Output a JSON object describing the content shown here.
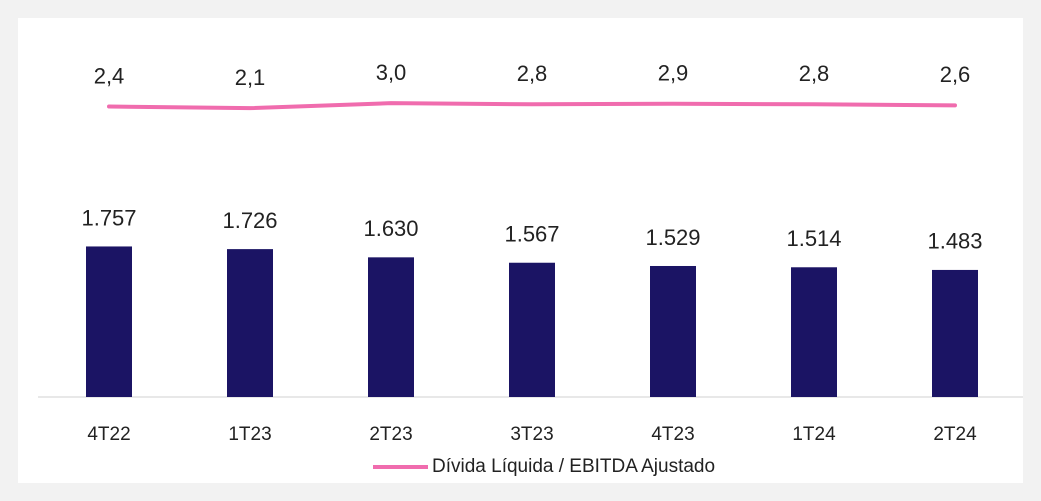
{
  "chart_data": {
    "type": "bar",
    "categories": [
      "4T22",
      "1T23",
      "2T23",
      "3T23",
      "4T23",
      "1T24",
      "2T24"
    ],
    "series": [
      {
        "type": "bar",
        "color": "#1b1464",
        "values": [
          1757,
          1726,
          1630,
          1567,
          1529,
          1514,
          1483
        ],
        "value_labels": [
          "1.757",
          "1.726",
          "1.630",
          "1.567",
          "1.529",
          "1.514",
          "1.483"
        ]
      },
      {
        "type": "line",
        "name": "Dívida Líquida / EBITDA Ajustado",
        "color": "#f06cae",
        "axis": "y2",
        "values": [
          2.4,
          2.1,
          3.0,
          2.8,
          2.9,
          2.8,
          2.6
        ],
        "value_labels": [
          "2,4",
          "2,1",
          "3,0",
          "2,8",
          "2,9",
          "2,8",
          "2,6"
        ]
      }
    ],
    "ylim": [
      0,
      4400
    ],
    "y2lim": [
      -50,
      18
    ],
    "legend": "bottom"
  }
}
